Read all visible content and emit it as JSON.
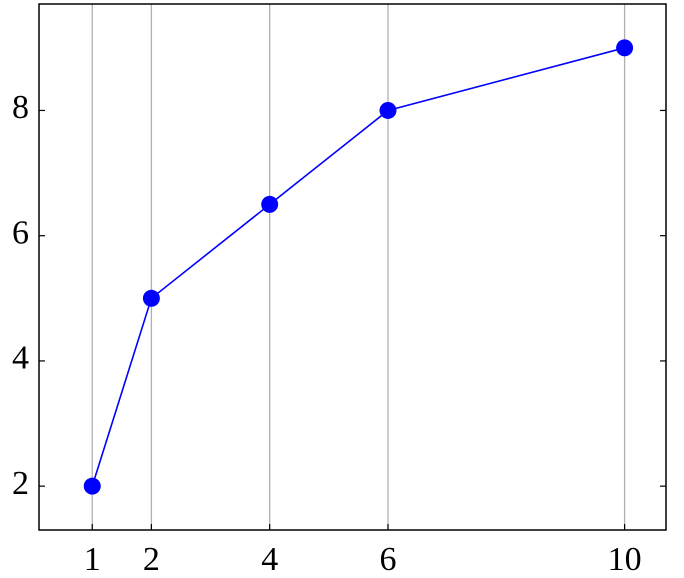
{
  "chart_data": {
    "type": "line",
    "x": [
      1,
      2,
      4,
      6,
      10
    ],
    "series": [
      {
        "color": "#0000ff",
        "values": [
          2,
          5,
          6.5,
          8,
          9
        ]
      }
    ],
    "xlim": [
      0.1,
      10.7
    ],
    "ylim": [
      1.3,
      9.7
    ],
    "xticks": [
      1,
      2,
      4,
      6,
      10
    ],
    "yticks": [
      2,
      4,
      6,
      8
    ],
    "xgrid": true,
    "ygrid": false
  }
}
